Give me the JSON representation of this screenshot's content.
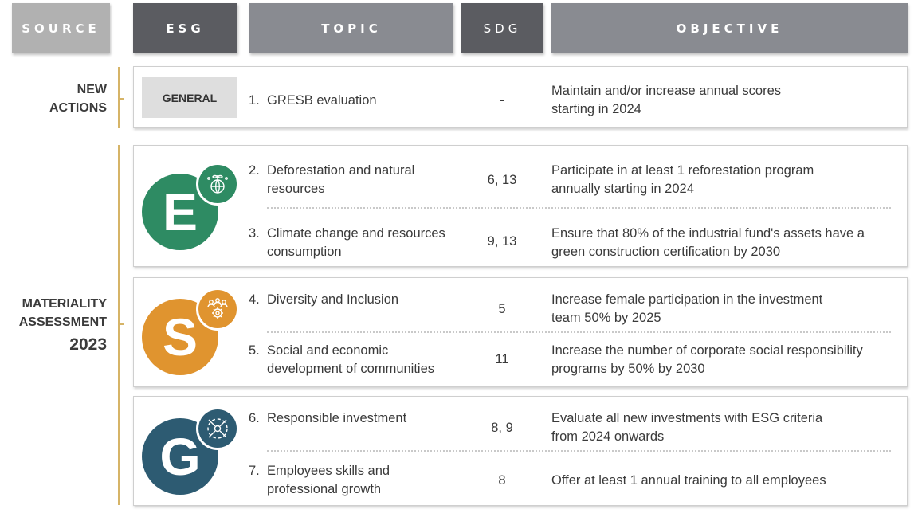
{
  "headers": {
    "source": "SOURCE",
    "esg": "ESG",
    "topic": "TOPIC",
    "sdg": "SDG",
    "objective": "OBJECTIVE"
  },
  "sources": {
    "new_line1": "NEW",
    "new_line2": "ACTIONS",
    "mat_line1": "MATERIALITY",
    "mat_line2": "ASSESSMENT",
    "mat_year": "2023"
  },
  "general_label": "GENERAL",
  "esg_letters": {
    "e": "E",
    "s": "S",
    "g": "G"
  },
  "colors": {
    "e": "#2e8b63",
    "s": "#e0942f",
    "g": "#2d5b72",
    "accent_line": "#d6b467"
  },
  "icons": {
    "e": "globe-sprout-icon",
    "s": "people-gear-icon",
    "g": "handshake-circle-icon"
  },
  "rows": [
    {
      "num": "1.",
      "topic1": "GRESB evaluation",
      "topic2": "",
      "sdg": "-",
      "obj1": "Maintain and/or increase annual scores",
      "obj2": "starting in 2024"
    },
    {
      "num": "2.",
      "topic1": "Deforestation and natural",
      "topic2": "resources",
      "sdg": "6, 13",
      "obj1": "Participate in at least 1 reforestation program",
      "obj2": "annually starting in 2024"
    },
    {
      "num": "3.",
      "topic1": "Climate change and resources",
      "topic2": "consumption",
      "sdg": "9, 13",
      "obj1": "Ensure that 80% of the industrial fund's assets have a",
      "obj2": "green construction certification by 2030"
    },
    {
      "num": "4.",
      "topic1": "Diversity and Inclusion",
      "topic2": "",
      "sdg": "5",
      "obj1": "Increase female participation in the investment",
      "obj2": "team 50% by 2025"
    },
    {
      "num": "5.",
      "topic1": "Social and economic",
      "topic2": "development of communities",
      "sdg": "11",
      "obj1": "Increase the number of corporate social responsibility",
      "obj2": "programs by 50% by 2030"
    },
    {
      "num": "6.",
      "topic1": "Responsible investment",
      "topic2": "",
      "sdg": "8, 9",
      "obj1": "Evaluate all new investments with ESG criteria",
      "obj2": "from 2024 onwards"
    },
    {
      "num": "7.",
      "topic1": "Employees skills and",
      "topic2": "professional growth",
      "sdg": "8",
      "obj1": "Offer at least 1 annual training to all employees",
      "obj2": ""
    }
  ]
}
